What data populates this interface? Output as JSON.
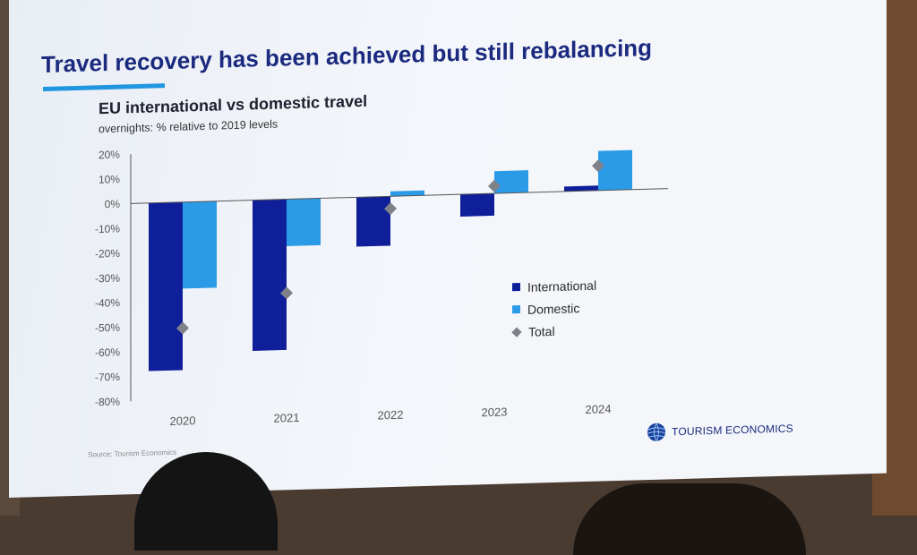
{
  "slide": {
    "title": "Travel recovery has been achieved but still rebalancing",
    "source": "Source: Tourism Economics",
    "brand": "TOURISM ECONOMICS"
  },
  "colors": {
    "international": "#0f1f9a",
    "domestic": "#2b9be8",
    "total": "#7f8189",
    "title": "#1b2a7e",
    "accent": "#2196e0"
  },
  "chart_data": {
    "type": "bar",
    "title": "EU international vs domestic travel",
    "subtitle": "overnights: % relative to 2019 levels",
    "categories": [
      "2020",
      "2021",
      "2022",
      "2023",
      "2024"
    ],
    "series": [
      {
        "name": "International",
        "values": [
          -68,
          -61,
          -20,
          -9,
          2
        ]
      },
      {
        "name": "Domestic",
        "values": [
          -35,
          -19,
          2,
          9,
          16
        ]
      },
      {
        "name": "Total",
        "values": [
          -51,
          -38,
          -5,
          3,
          10
        ],
        "marker": "diamond"
      }
    ],
    "ylim": [
      -80,
      20
    ],
    "yticks": [
      "20%",
      "10%",
      "0%",
      "-10%",
      "-20%",
      "-30%",
      "-40%",
      "-50%",
      "-60%",
      "-70%",
      "-80%"
    ],
    "grid": false,
    "legend": "right"
  }
}
